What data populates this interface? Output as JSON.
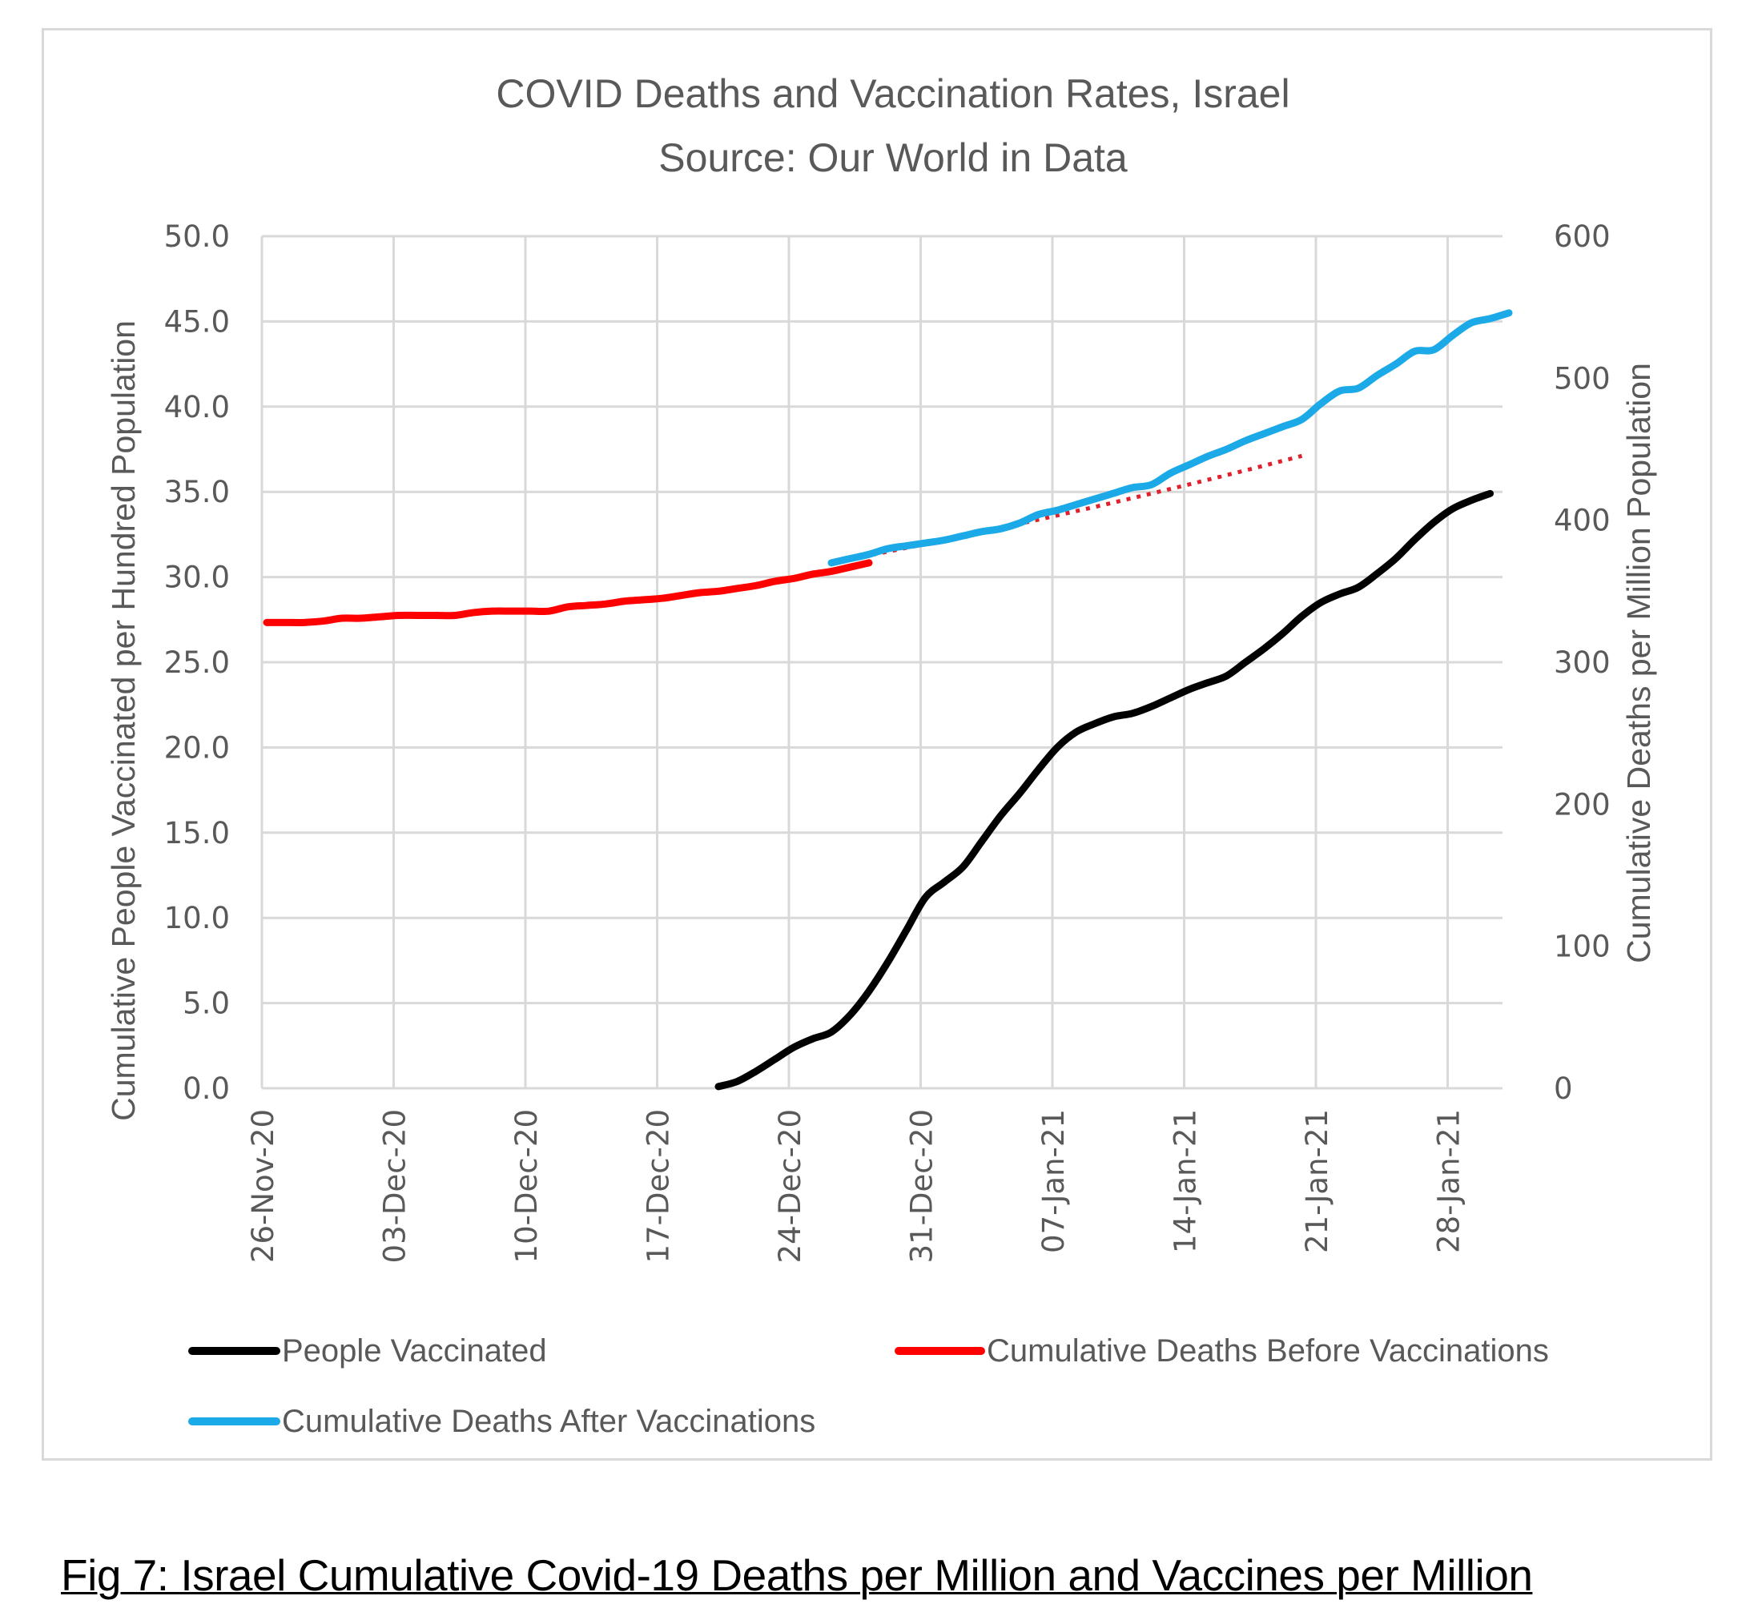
{
  "caption": "Fig 7: Israel Cumulative Covid-19 Deaths per Million and Vaccines per Million",
  "chart_data": {
    "type": "line",
    "title": "COVID Deaths and Vaccination Rates, Israel",
    "subtitle": "Source: Our World in Data",
    "xlabel": "",
    "ylabel": "Cumulative People Vaccinated per Hundred Population",
    "y2label": "Cumulative Deaths per Million Population",
    "ylim": [
      0,
      50
    ],
    "y2lim": [
      0,
      600
    ],
    "yticks": [
      "0.0",
      "5.0",
      "10.0",
      "15.0",
      "20.0",
      "25.0",
      "30.0",
      "35.0",
      "40.0",
      "45.0",
      "50.0"
    ],
    "y2ticks": [
      "0",
      "100",
      "200",
      "300",
      "400",
      "500",
      "600"
    ],
    "xticks": [
      "26-Nov-20",
      "03-Dec-20",
      "10-Dec-20",
      "17-Dec-20",
      "24-Dec-20",
      "31-Dec-20",
      "07-Jan-21",
      "14-Jan-21",
      "21-Jan-21",
      "28-Jan-21"
    ],
    "x_start_date": "2020-11-26",
    "x_end_date": "2021-01-31",
    "grid": true,
    "legend_position": "bottom",
    "series": [
      {
        "name": "People Vaccinated",
        "axis": "left",
        "color": "#000000",
        "start_day": 24,
        "values": [
          0.1,
          0.4,
          1.0,
          1.7,
          2.4,
          2.9,
          3.3,
          4.3,
          5.7,
          7.4,
          9.3,
          11.2,
          12.1,
          13.0,
          14.5,
          16.0,
          17.3,
          18.7,
          20.0,
          20.9,
          21.4,
          21.8,
          22.0,
          22.4,
          22.9,
          23.4,
          23.8,
          24.2,
          25.0,
          25.8,
          26.7,
          27.7,
          28.5,
          29.0,
          29.4,
          30.2,
          31.1,
          32.2,
          33.2,
          34.0,
          34.5,
          34.9
        ]
      },
      {
        "name": "Cumulative Deaths Before Vaccinations",
        "axis": "right",
        "color": "#ff0000",
        "start_day": 0,
        "values": [
          328,
          328,
          328,
          329,
          331,
          331,
          332,
          333,
          333,
          333,
          333,
          335,
          336,
          336,
          336,
          336,
          339,
          340,
          341,
          343,
          344,
          345,
          347,
          349,
          350,
          352,
          354,
          357,
          359,
          362,
          364,
          367,
          370
        ]
      },
      {
        "name": "Cumulative Deaths After Vaccinations",
        "axis": "right",
        "color": "#1ba9e8",
        "start_day": 30,
        "values": [
          370,
          373,
          376,
          380,
          382,
          384,
          386,
          389,
          392,
          394,
          398,
          404,
          407,
          411,
          415,
          419,
          423,
          425,
          433,
          439,
          445,
          450,
          456,
          461,
          466,
          471,
          482,
          491,
          493,
          502,
          510,
          519,
          520,
          530,
          539,
          542,
          546
        ]
      },
      {
        "name": "Trend (Deaths Before Vaccinations)",
        "axis": "right",
        "color": "#e0202a",
        "style": "dotted",
        "in_legend": false,
        "start_day": 30,
        "values": [
          370,
          372.6,
          375.2,
          377.9,
          380.6,
          383.3,
          386.1,
          388.9,
          391.7,
          394.6,
          397.5,
          400.4,
          403.4,
          406.4,
          409.4,
          412.5,
          415.6,
          418.8,
          422.0,
          425.2,
          428.5,
          431.8,
          435.1,
          438.5,
          441.9,
          445.3
        ]
      }
    ]
  }
}
